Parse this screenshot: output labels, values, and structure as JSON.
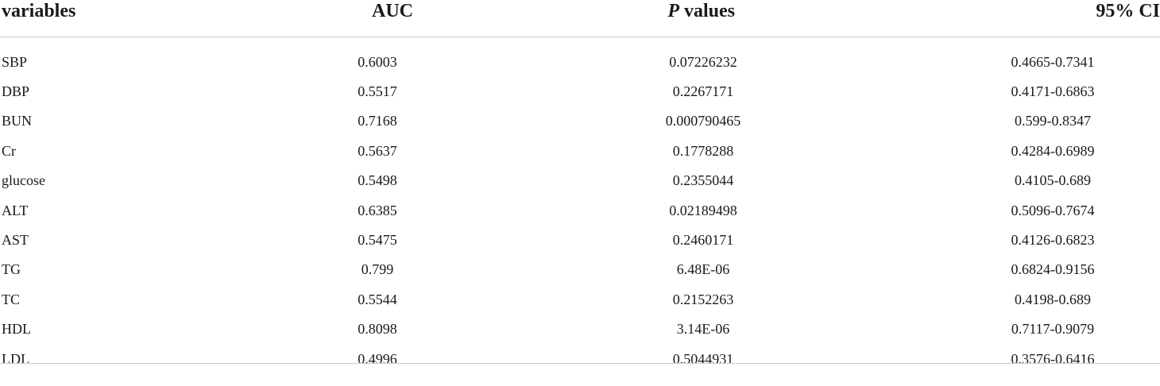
{
  "table": {
    "headers": {
      "variables": "variables",
      "auc": "AUC",
      "p_italic": "P",
      "p_rest": " values",
      "ci": "95% CI"
    },
    "rows": [
      {
        "variable": "SBP",
        "auc": "0.6003",
        "p": "0.07226232",
        "ci": "0.4665-0.7341"
      },
      {
        "variable": "DBP",
        "auc": "0.5517",
        "p": "0.2267171",
        "ci": "0.4171-0.6863"
      },
      {
        "variable": "BUN",
        "auc": "0.7168",
        "p": "0.000790465",
        "ci": "0.599-0.8347"
      },
      {
        "variable": "Cr",
        "auc": "0.5637",
        "p": "0.1778288",
        "ci": "0.4284-0.6989"
      },
      {
        "variable": "glucose",
        "auc": "0.5498",
        "p": "0.2355044",
        "ci": "0.4105-0.689"
      },
      {
        "variable": "ALT",
        "auc": "0.6385",
        "p": "0.02189498",
        "ci": "0.5096-0.7674"
      },
      {
        "variable": "AST",
        "auc": "0.5475",
        "p": "0.2460171",
        "ci": "0.4126-0.6823"
      },
      {
        "variable": "TG",
        "auc": "0.799",
        "p": "6.48E-06",
        "ci": "0.6824-0.9156"
      },
      {
        "variable": "TC",
        "auc": "0.5544",
        "p": "0.2152263",
        "ci": "0.4198-0.689"
      },
      {
        "variable": "HDL",
        "auc": "0.8098",
        "p": "3.14E-06",
        "ci": "0.7117-0.9079"
      },
      {
        "variable": "LDL",
        "auc": "0.4996",
        "p": "0.5044931",
        "ci": "0.3576-0.6416"
      }
    ]
  }
}
